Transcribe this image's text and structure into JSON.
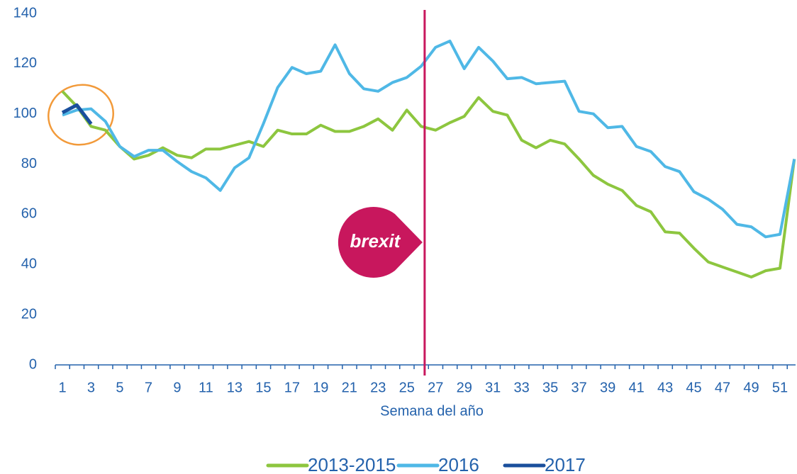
{
  "chart_data": {
    "type": "line",
    "x_label": "Semana del año",
    "categories": [
      "1",
      null,
      "3",
      null,
      "5",
      null,
      "7",
      null,
      "9",
      null,
      "11",
      null,
      "13",
      null,
      "15",
      null,
      "17",
      null,
      "19",
      null,
      "21",
      null,
      "23",
      null,
      "25",
      null,
      "27",
      null,
      "29",
      null,
      "31",
      null,
      "33",
      null,
      "35",
      null,
      "37",
      null,
      "39",
      null,
      "41",
      null,
      "43",
      null,
      "45",
      null,
      "47",
      null,
      "49",
      null,
      "51",
      null
    ],
    "series": [
      {
        "name": "2013-2015",
        "color": "#8dc63f",
        "values": [
          109,
          103,
          95,
          93.5,
          87,
          82,
          83.5,
          86.5,
          83.5,
          82.5,
          86,
          86,
          87.5,
          89,
          87,
          93.5,
          92,
          92,
          95.5,
          93,
          93,
          95,
          98,
          93.5,
          101.5,
          95,
          93.5,
          96.5,
          99,
          106.5,
          101,
          99.5,
          89.5,
          86.5,
          89.5,
          88,
          82,
          75.5,
          72,
          69.5,
          63.5,
          61,
          53,
          52.5,
          46.5,
          41,
          39,
          37,
          35,
          37.5,
          38.5,
          82
        ]
      },
      {
        "name": "2016",
        "color": "#4fb8e6",
        "values": [
          99.5,
          101.5,
          102,
          97,
          87,
          83,
          85.5,
          85.5,
          81,
          77,
          74.5,
          69.5,
          78.5,
          82.5,
          96,
          110.5,
          118.5,
          116,
          117,
          127.5,
          116,
          110,
          109,
          112.5,
          114.5,
          119,
          126.5,
          129,
          118,
          126.5,
          121,
          114,
          114.5,
          112,
          112.5,
          113,
          101,
          100,
          94.5,
          95,
          87,
          85,
          79,
          77,
          69,
          66,
          62,
          56,
          55,
          51,
          52,
          82
        ]
      },
      {
        "name": "2017",
        "color": "#1a4f9c",
        "values": [
          100.5,
          103.5,
          96,
          null,
          null,
          null,
          null,
          null,
          null,
          null,
          null,
          null,
          null,
          null,
          null,
          null,
          null,
          null,
          null,
          null,
          null,
          null,
          null,
          null,
          null,
          null,
          null,
          null,
          null,
          null,
          null,
          null,
          null,
          null,
          null,
          null,
          null,
          null,
          null,
          null,
          null,
          null,
          null,
          null,
          null,
          null,
          null,
          null,
          null,
          null,
          null,
          null
        ]
      }
    ],
    "ylim": [
      0,
      140
    ],
    "yticks": [
      0,
      20,
      40,
      60,
      80,
      100,
      120,
      140
    ],
    "annotation": "brexit",
    "annotation_color": "#c8175d",
    "annotation_week": 26
  }
}
